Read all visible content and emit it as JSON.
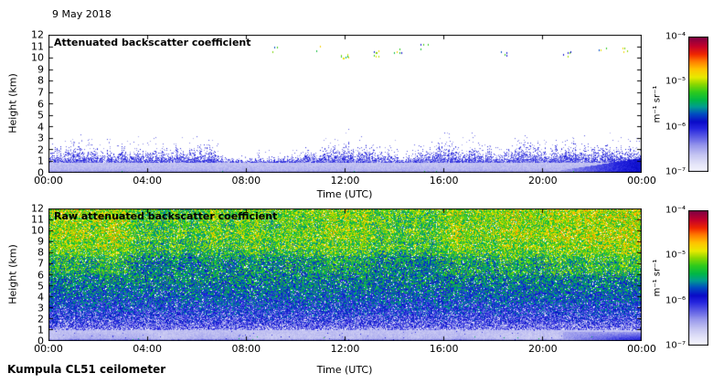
{
  "figure": {
    "date_label": "9 May 2018",
    "footer_label": "Kumpula CL51 ceilometer",
    "background": "#ffffff",
    "text_color": "#000000"
  },
  "colormap": {
    "note": "logarithmic backscatter color scale, 1e-7 (light lavender) to 1e-4 (dark maroon)",
    "stops": [
      [
        0.0,
        "#f4f4fd"
      ],
      [
        0.05,
        "#e6e6f9"
      ],
      [
        0.12,
        "#c6c6f2"
      ],
      [
        0.19,
        "#9898ec"
      ],
      [
        0.26,
        "#5a5ae4"
      ],
      [
        0.32,
        "#2424de"
      ],
      [
        0.37,
        "#0a0ac8"
      ],
      [
        0.43,
        "#0050c0"
      ],
      [
        0.48,
        "#009c90"
      ],
      [
        0.53,
        "#00b747"
      ],
      [
        0.59,
        "#2ecb1c"
      ],
      [
        0.65,
        "#8ed800"
      ],
      [
        0.7,
        "#e8ea00"
      ],
      [
        0.76,
        "#ffc400"
      ],
      [
        0.82,
        "#ff7a00"
      ],
      [
        0.87,
        "#f02800"
      ],
      [
        0.93,
        "#c4002a"
      ],
      [
        1.0,
        "#7c0046"
      ]
    ]
  },
  "chart_data": [
    {
      "type": "heatmap",
      "panel": "top",
      "title": "Attenuated backscatter coefficient",
      "xlabel": "Time (UTC)",
      "ylabel": "Height (km)",
      "x_ticks": [
        "00:00",
        "04:00",
        "08:00",
        "12:00",
        "16:00",
        "20:00",
        "00:00"
      ],
      "y_ticks": [
        "0",
        "1",
        "2",
        "3",
        "4",
        "5",
        "6",
        "7",
        "8",
        "9",
        "10",
        "11",
        "12"
      ],
      "xlim_hours": [
        0,
        24
      ],
      "ylim_km": [
        0,
        12
      ],
      "grid": false,
      "colorbar": {
        "labels": [
          "10⁻⁴",
          "10⁻⁵",
          "10⁻⁶",
          "10⁻⁷"
        ],
        "unit": "m⁻¹ sr⁻¹",
        "top_value": 0.0001,
        "bottom_value": 1e-07,
        "scale": "log"
      },
      "features": [
        "spiky boundary-layer aerosol backscatter from 0 to ~2.5 km all day",
        "smooth light lavender layer below ~1 km with darker base",
        "clear white air above ~3 km",
        "sparse cirrus returns (yellow/orange/green/blue dots) near 10-11 km from ~09:00 onward",
        "denser blue low aerosol/cloud wedge after ~21:00 below ~1.3 km"
      ],
      "render": {
        "style": "clean",
        "seed": 1234,
        "spike_base_km": 0.95,
        "spike_top_km": [
          1.25,
          2.55
        ],
        "cirrus_specks": [
          [
            0.38,
            10.8,
            3
          ],
          [
            0.455,
            10.9,
            2
          ],
          [
            0.5,
            10.2,
            8
          ],
          [
            0.555,
            10.4,
            7
          ],
          [
            0.59,
            10.6,
            5
          ],
          [
            0.635,
            11.0,
            4
          ],
          [
            0.77,
            10.5,
            4
          ],
          [
            0.875,
            10.3,
            5
          ],
          [
            0.935,
            10.9,
            3
          ],
          [
            0.975,
            10.7,
            4
          ]
        ]
      }
    },
    {
      "type": "heatmap",
      "panel": "bottom",
      "title": "Raw attenuated backscatter coefficient",
      "xlabel": "Time (UTC)",
      "ylabel": "Height (km)",
      "x_ticks": [
        "00:00",
        "04:00",
        "08:00",
        "12:00",
        "16:00",
        "20:00",
        "00:00"
      ],
      "y_ticks": [
        "0",
        "1",
        "2",
        "3",
        "4",
        "5",
        "6",
        "7",
        "8",
        "9",
        "10",
        "11",
        "12"
      ],
      "xlim_hours": [
        0,
        24
      ],
      "ylim_km": [
        0,
        12
      ],
      "grid": false,
      "colorbar": {
        "labels": [
          "10⁻⁴",
          "10⁻⁵",
          "10⁻⁶",
          "10⁻⁷"
        ],
        "unit": "m⁻¹ sr⁻¹",
        "top_value": 0.0001,
        "bottom_value": 1e-07,
        "scale": "log"
      },
      "features": [
        "dense instrument noise whose apparent backscatter increases with height",
        "green noise with yellow patches above ~8 km",
        "blue noise with white gaps from ~1.5 to 6 km",
        "smooth light lavender aerosol layer below ~1 km with blue streaks",
        "darker blue low cloud wedge after ~21:00 near the surface"
      ],
      "render": {
        "style": "raw",
        "seed": 987,
        "spread": 0.3,
        "white_prob": 0.045,
        "profile": [
          [
            0,
            0.1
          ],
          [
            0.7,
            0.13
          ],
          [
            1.3,
            0.24
          ],
          [
            2.5,
            0.33
          ],
          [
            4,
            0.41
          ],
          [
            6,
            0.49
          ],
          [
            8,
            0.555
          ],
          [
            10,
            0.6
          ],
          [
            12,
            0.635
          ]
        ]
      }
    }
  ]
}
